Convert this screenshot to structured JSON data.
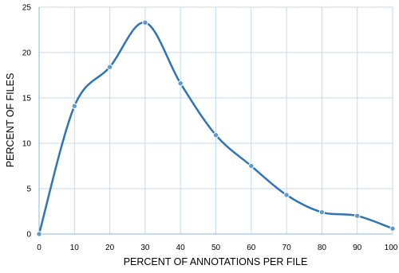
{
  "chart_data": {
    "type": "line",
    "title": "",
    "xlabel": "PERCENT OF ANNOTATIONS PER FILE",
    "ylabel": "PERCENT OF FILES",
    "x": [
      0,
      10,
      20,
      30,
      40,
      50,
      60,
      70,
      80,
      90,
      100
    ],
    "series": [
      {
        "values": [
          0,
          14.1,
          18.4,
          23.3,
          16.6,
          10.9,
          7.5,
          4.3,
          2.4,
          2.0,
          0.6
        ]
      }
    ],
    "xlim": [
      0,
      100
    ],
    "ylim": [
      0,
      25
    ],
    "xticks": [
      "0",
      "10",
      "20",
      "30",
      "40",
      "50",
      "60",
      "70",
      "80",
      "90",
      "100"
    ],
    "yticks": [
      "0",
      "5",
      "10",
      "15",
      "20",
      "25"
    ],
    "grid": true,
    "smooth": true,
    "colors": {
      "line": "#2E75B6",
      "marker": "#5B9BD5",
      "grid": "#C5D9EE",
      "axis": "#8DB4E2"
    }
  }
}
